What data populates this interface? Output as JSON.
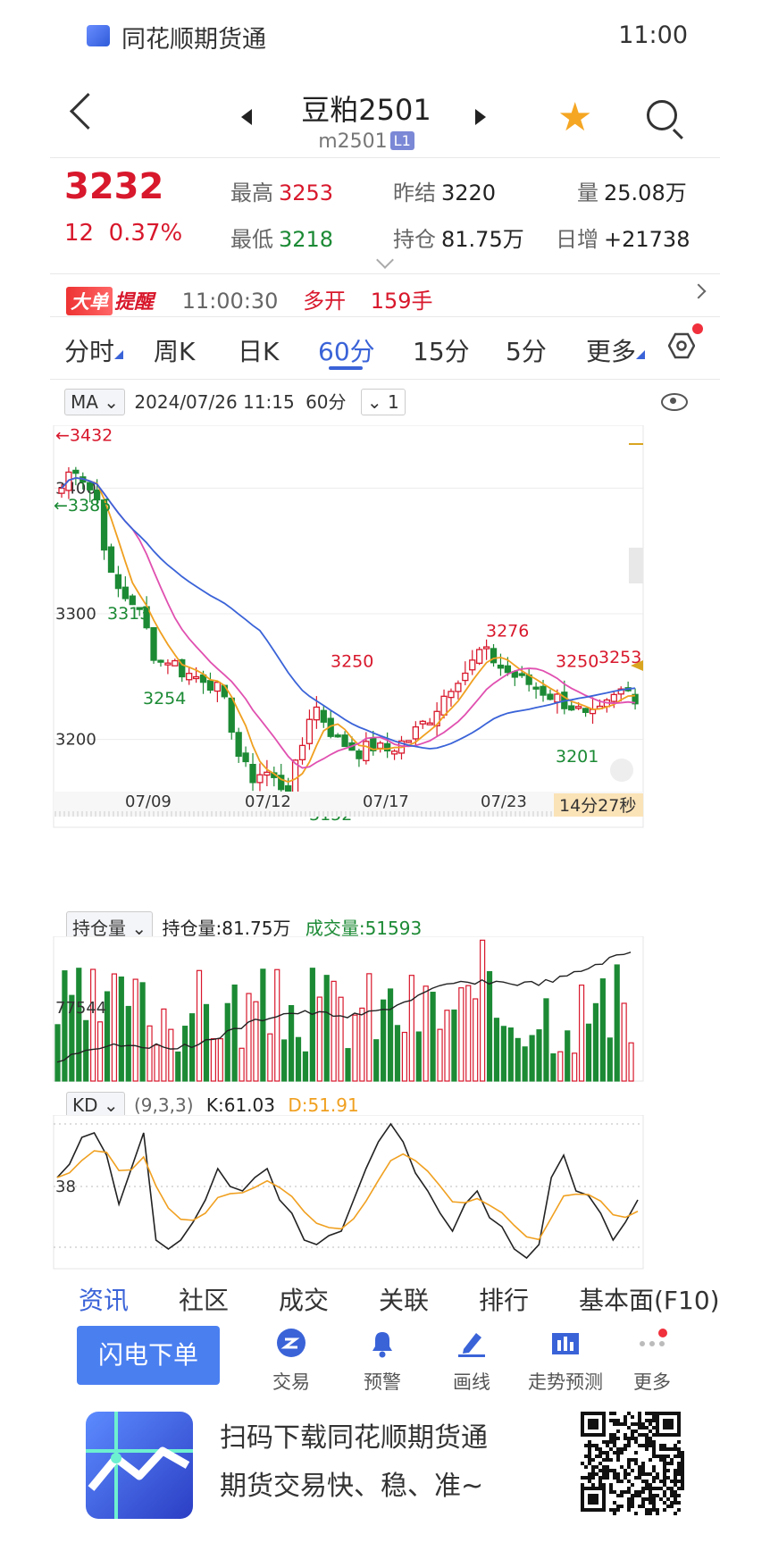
{
  "status_bar": {
    "app_name": "同花顺期货通",
    "time": "11:00"
  },
  "header": {
    "title": "豆粕2501",
    "code": "m2501",
    "level_badge": "L1"
  },
  "quote": {
    "last_price": "3232",
    "change": "12",
    "change_pct": "0.37%",
    "high_label": "最高",
    "high": "3253",
    "low_label": "最低",
    "low": "3218",
    "prev_settle_label": "昨结",
    "prev_settle": "3220",
    "open_int_label": "持仓",
    "open_int": "81.75万",
    "volume_label": "量",
    "volume": "25.08万",
    "daily_inc_label": "日增",
    "daily_inc": "+21738"
  },
  "alert": {
    "badge": "大单",
    "badge_suffix": "提醒",
    "time": "11:00:30",
    "action": "多开",
    "qty": "159手"
  },
  "period_tabs": [
    {
      "label": "分时",
      "active": false
    },
    {
      "label": "周K",
      "active": false
    },
    {
      "label": "日K",
      "active": false
    },
    {
      "label": "60分",
      "active": true
    },
    {
      "label": "15分",
      "active": false
    },
    {
      "label": "5分",
      "active": false
    },
    {
      "label": "更多",
      "active": false
    }
  ],
  "chart_info": {
    "indicator": "MA",
    "datetime": "2024/07/26 11:15",
    "period": "60分",
    "count": "1"
  },
  "main_chart": {
    "y_labels": [
      "3400",
      "3300",
      "3200"
    ],
    "x_labels": [
      "07/09",
      "07/12",
      "07/17",
      "07/23"
    ],
    "countdown": "14分27秒",
    "annotations": {
      "max_left": "←3432",
      "min_left": "←3386",
      "a1": "3313",
      "a2": "3254",
      "a3": "3250",
      "a4": "3152",
      "a5": "3276",
      "a6": "3250",
      "a7": "3253",
      "a8": "3201"
    }
  },
  "volume_panel": {
    "selector": "持仓量",
    "oi_label": "持仓量:81.75万",
    "vol_label": "成交量:51593",
    "y_label": "77544"
  },
  "kd_panel": {
    "selector": "KD",
    "params": "(9,3,3)",
    "k": "K:61.03",
    "d": "D:51.91",
    "y_label": "38"
  },
  "colors": {
    "up": "#d8182c",
    "down": "#1c8a35",
    "ma_orange": "#f0a020",
    "ma_pink": "#e050b0",
    "ma_blue": "#3a63d8",
    "accent": "#3a63d8"
  },
  "bottom_tabs": [
    "资讯",
    "社区",
    "成交",
    "关联",
    "排行",
    "基本面(F10)"
  ],
  "actions": {
    "flash_order": "闪电下单",
    "items": [
      {
        "label": "交易",
        "icon": "trade-icon"
      },
      {
        "label": "预警",
        "icon": "bell-icon"
      },
      {
        "label": "画线",
        "icon": "draw-icon"
      },
      {
        "label": "走势预测",
        "icon": "forecast-icon"
      },
      {
        "label": "更多",
        "icon": "more-icon"
      }
    ]
  },
  "promo": {
    "line1": "扫码下载同花顺期货通",
    "line2": "期货交易快、稳、准~"
  }
}
